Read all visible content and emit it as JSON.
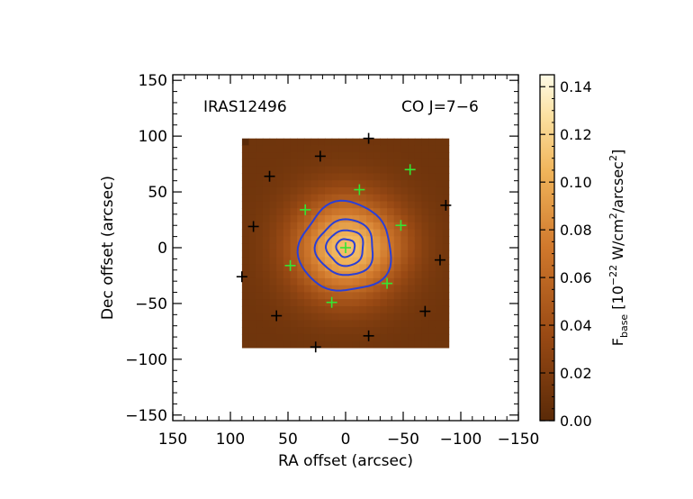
{
  "chart_data": {
    "type": "heatmap",
    "title": "",
    "xlabel": "RA offset (arcsec)",
    "ylabel": "Dec offset (arcsec)",
    "xlim": [
      150,
      -150
    ],
    "ylim": [
      -155,
      155
    ],
    "x_ticks": [
      150,
      100,
      50,
      0,
      -50,
      -100,
      -150
    ],
    "x_tick_labels": [
      "150",
      "100",
      "50",
      "0",
      "−50",
      "−100",
      "−150"
    ],
    "y_ticks": [
      -150,
      -100,
      -50,
      0,
      50,
      100,
      150
    ],
    "y_tick_labels": [
      "−150",
      "−100",
      "−50",
      "0",
      "50",
      "100",
      "150"
    ],
    "annotations": {
      "source": "IRAS12496",
      "line": "CO J=7−6"
    },
    "image_extent": {
      "ra": [
        90,
        -90
      ],
      "dec": [
        -90,
        98
      ]
    },
    "grid": false,
    "colormap": "heat (dark brown to pale yellow)",
    "colors": {
      "contour": "#2a3fd6",
      "marker_green": "#33e633",
      "marker_black": "#000000",
      "cmap_low": "#5a2a08",
      "cmap_high": "#fffbe6"
    },
    "intensity_model": {
      "peak": 0.11,
      "background": 0.012,
      "center": [
        0,
        0
      ],
      "sigma_arcsec": 32,
      "sidelobe_level": 0.09
    },
    "contours": [
      {
        "level": 0.085,
        "radius_arcsec": 8
      },
      {
        "level": 0.07,
        "radius_arcsec": 16
      },
      {
        "level": 0.055,
        "radius_arcsec": 25
      },
      {
        "level": 0.04,
        "radius_arcsec": 40
      }
    ],
    "markers_green": [
      {
        "ra": 0,
        "dec": 0
      },
      {
        "ra": 35,
        "dec": 34
      },
      {
        "ra": -12,
        "dec": 52
      },
      {
        "ra": -56,
        "dec": 70
      },
      {
        "ra": -48,
        "dec": 20
      },
      {
        "ra": 48,
        "dec": -16
      },
      {
        "ra": -36,
        "dec": -32
      },
      {
        "ra": 12,
        "dec": -49
      }
    ],
    "markers_black": [
      {
        "ra": -20,
        "dec": 98
      },
      {
        "ra": 22,
        "dec": 82
      },
      {
        "ra": 66,
        "dec": 64
      },
      {
        "ra": -87,
        "dec": 38
      },
      {
        "ra": 80,
        "dec": 19
      },
      {
        "ra": -82,
        "dec": -11
      },
      {
        "ra": 90,
        "dec": -26
      },
      {
        "ra": 60,
        "dec": -61
      },
      {
        "ra": -69,
        "dec": -57
      },
      {
        "ra": -20,
        "dec": -79
      },
      {
        "ra": 26,
        "dec": -89
      }
    ],
    "colorbar": {
      "range": [
        0,
        0.145
      ],
      "ticks": [
        0.0,
        0.02,
        0.04,
        0.06,
        0.08,
        0.1,
        0.12,
        0.14
      ],
      "tick_labels": [
        "0.00",
        "0.02",
        "0.04",
        "0.06",
        "0.08",
        "0.10",
        "0.12",
        "0.14"
      ],
      "label": {
        "prefix": "F",
        "subscript": "base",
        "open": " [10",
        "exp1": "−22",
        "mid": " W/cm",
        "exp2": "2",
        "mid2": "/arcsec",
        "exp3": "2",
        "close": "]"
      }
    }
  }
}
